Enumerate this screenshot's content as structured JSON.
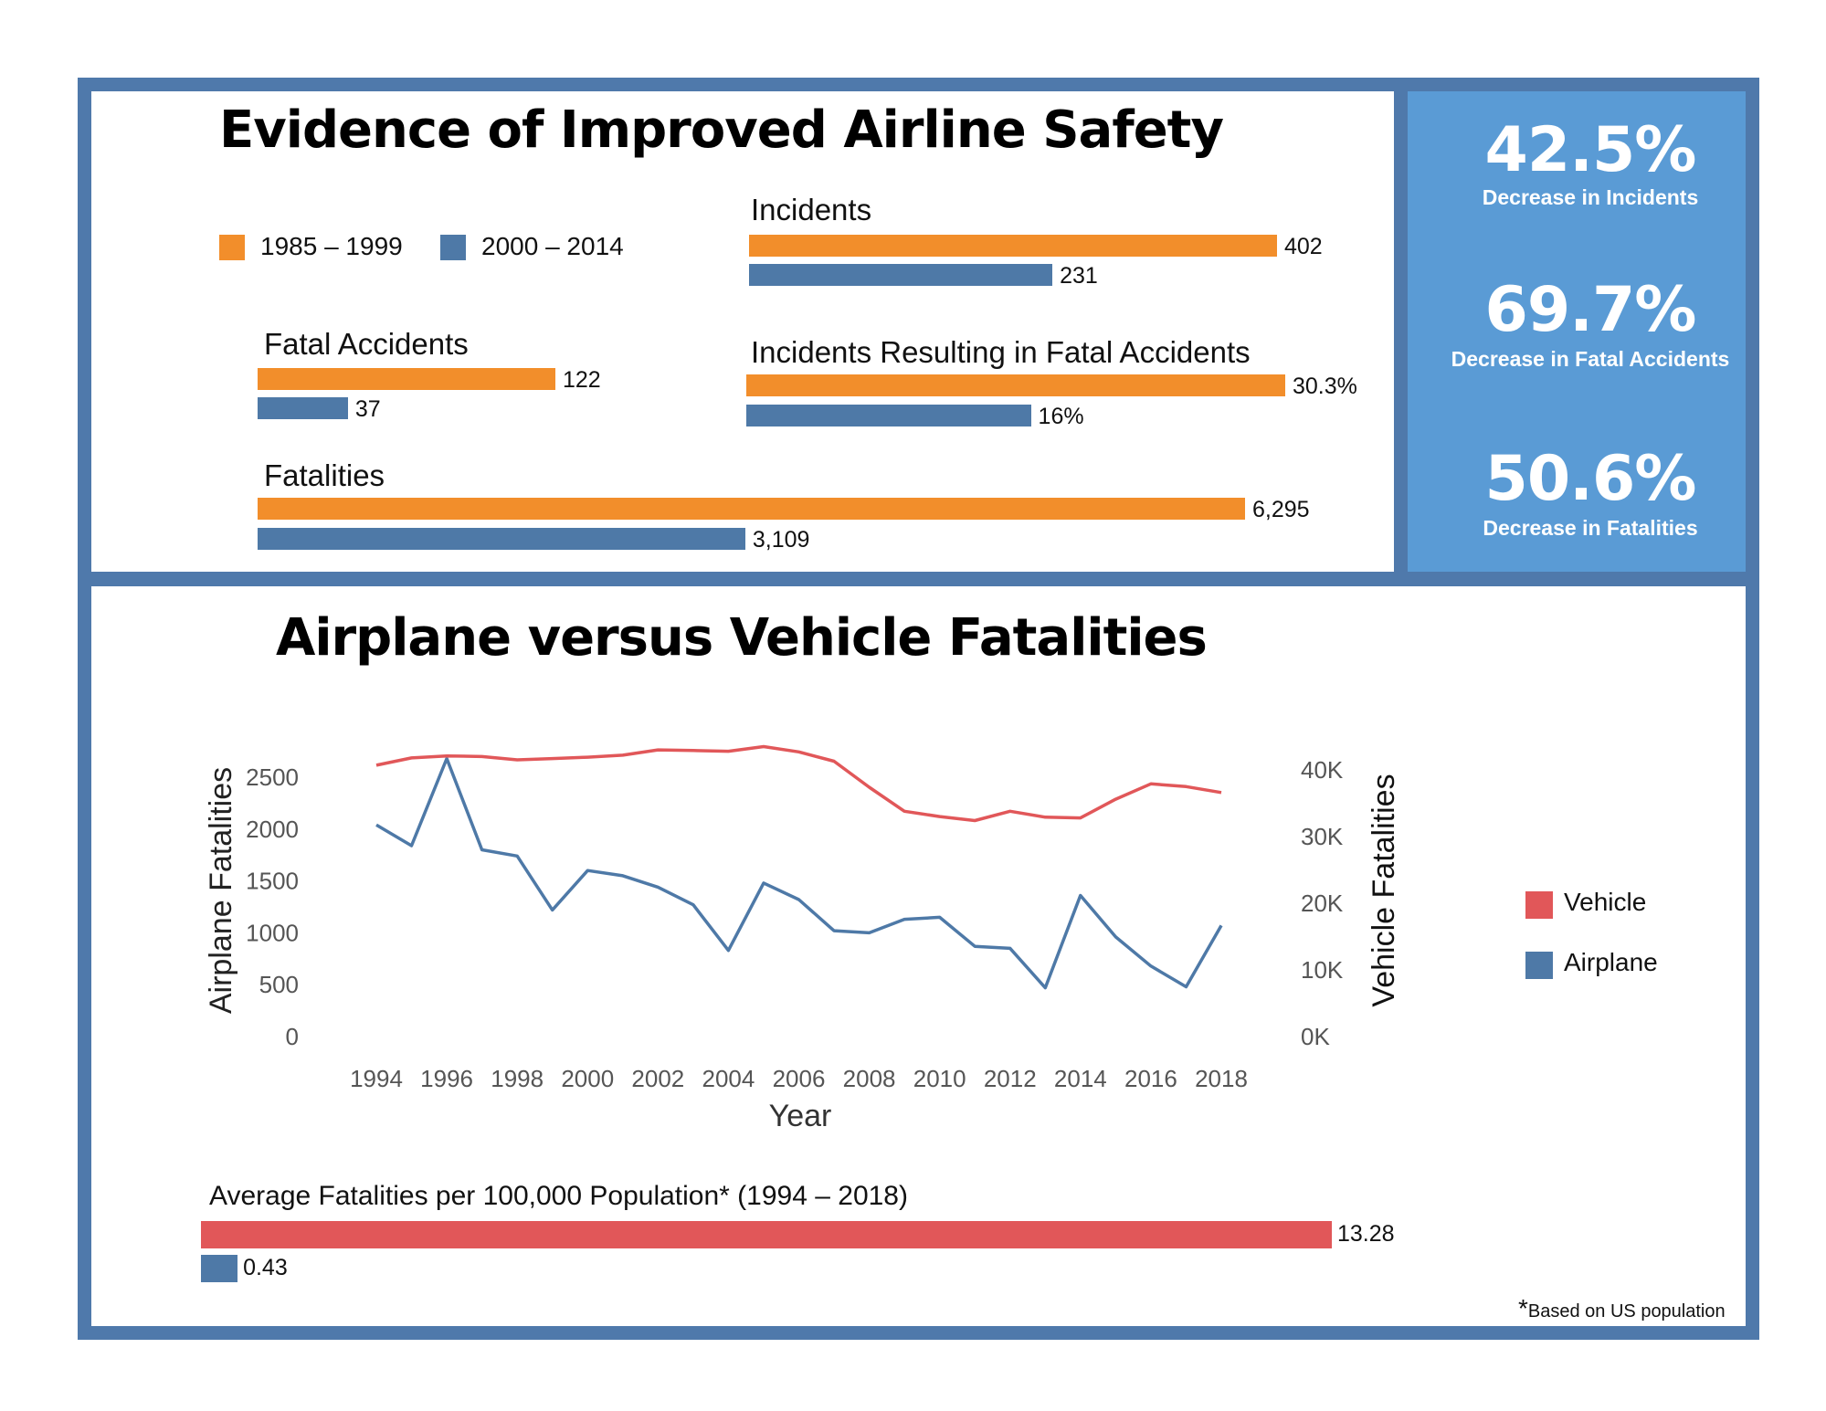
{
  "top": {
    "title": "Evidence of Improved Airline Safety",
    "legend": [
      {
        "label": "1985 – 1999",
        "color": "#f28e2b"
      },
      {
        "label": "2000 – 2014",
        "color": "#4e79a7"
      }
    ]
  },
  "stats": [
    {
      "value": "42.5%",
      "label": "Decrease in Incidents"
    },
    {
      "value": "69.7%",
      "label": "Decrease in Fatal Accidents"
    },
    {
      "value": "50.6%",
      "label": "Decrease in Fatalities"
    }
  ],
  "bottom": {
    "title": "Airplane versus Vehicle Fatalities",
    "legend": [
      {
        "label": "Vehicle",
        "color": "#e15759"
      },
      {
        "label": "Airplane",
        "color": "#4e79a7"
      }
    ],
    "footnote_star": "*",
    "footnote": "Based on US population"
  },
  "chart_data": [
    {
      "type": "bar",
      "title": "Incidents",
      "series": [
        {
          "name": "1985 – 1999",
          "values": [
            402
          ],
          "value_labels": [
            "402"
          ]
        },
        {
          "name": "2000 – 2014",
          "values": [
            231
          ],
          "value_labels": [
            "231"
          ]
        }
      ]
    },
    {
      "type": "bar",
      "title": "Fatal Accidents",
      "series": [
        {
          "name": "1985 – 1999",
          "values": [
            122
          ],
          "value_labels": [
            "122"
          ]
        },
        {
          "name": "2000 – 2014",
          "values": [
            37
          ],
          "value_labels": [
            "37"
          ]
        }
      ]
    },
    {
      "type": "bar",
      "title": "Incidents Resulting in Fatal Accidents",
      "series": [
        {
          "name": "1985 – 1999",
          "values": [
            30.3
          ],
          "value_labels": [
            "30.3%"
          ]
        },
        {
          "name": "2000 – 2014",
          "values": [
            16
          ],
          "value_labels": [
            "16%"
          ]
        }
      ]
    },
    {
      "type": "bar",
      "title": "Fatalities",
      "series": [
        {
          "name": "1985 – 1999",
          "values": [
            6295
          ],
          "value_labels": [
            "6,295"
          ]
        },
        {
          "name": "2000 – 2014",
          "values": [
            3109
          ],
          "value_labels": [
            "3,109"
          ]
        }
      ]
    },
    {
      "type": "line",
      "xlabel": "Year",
      "ylabel": "Airplane Fatalities",
      "y2label": "Vehicle Fatalities",
      "x": [
        1994,
        1995,
        1996,
        1997,
        1998,
        1999,
        2000,
        2001,
        2002,
        2003,
        2004,
        2005,
        2006,
        2007,
        2008,
        2009,
        2010,
        2011,
        2012,
        2013,
        2014,
        2015,
        2016,
        2017,
        2018
      ],
      "x_ticks": [
        "1994",
        "1996",
        "1998",
        "2000",
        "2002",
        "2004",
        "2006",
        "2008",
        "2010",
        "2012",
        "2014",
        "2016",
        "2018"
      ],
      "y_ticks": [
        "0",
        "500",
        "1000",
        "1500",
        "2000",
        "2500"
      ],
      "y2_ticks": [
        "0K",
        "10K",
        "20K",
        "30K",
        "40K"
      ],
      "ylim": [
        0,
        2850
      ],
      "y2lim": [
        0,
        44000
      ],
      "series": [
        {
          "name": "Airplane",
          "axis": "left",
          "color": "#4e79a7",
          "values": [
            2040,
            1840,
            2680,
            1800,
            1740,
            1220,
            1600,
            1550,
            1440,
            1270,
            830,
            1480,
            1320,
            1020,
            1000,
            1130,
            1150,
            870,
            850,
            470,
            1360,
            960,
            680,
            480,
            1070
          ]
        },
        {
          "name": "Vehicle",
          "axis": "right",
          "color": "#e15759",
          "values": [
            40700,
            41800,
            42100,
            42000,
            41500,
            41700,
            41900,
            42200,
            43000,
            42900,
            42800,
            43500,
            42700,
            41300,
            37400,
            33800,
            33000,
            32400,
            33800,
            32900,
            32800,
            35600,
            37900,
            37500,
            36600
          ]
        }
      ]
    },
    {
      "type": "bar",
      "title": "Average Fatalities per 100,000 Population* (1994 – 2018)",
      "series": [
        {
          "name": "Vehicle",
          "values": [
            13.28
          ],
          "value_labels": [
            "13.28"
          ]
        },
        {
          "name": "Airplane",
          "values": [
            0.43
          ],
          "value_labels": [
            "0.43"
          ]
        }
      ]
    }
  ]
}
